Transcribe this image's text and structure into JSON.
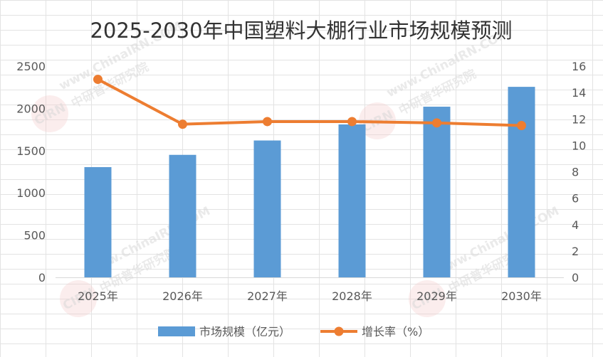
{
  "chart_data": {
    "type": "bar",
    "title": "2025-2030年中国塑料大棚行业市场规模预测",
    "categories": [
      "2025年",
      "2026年",
      "2027年",
      "2028年",
      "2029年",
      "2030年"
    ],
    "series": [
      {
        "name": "市场规模（亿元）",
        "type": "bar",
        "axis": "left",
        "color": "#5b9bd5",
        "values": [
          1305,
          1450,
          1620,
          1810,
          2020,
          2255
        ]
      },
      {
        "name": "增长率（%）",
        "type": "line",
        "axis": "right",
        "color": "#ed7d31",
        "values": [
          15.0,
          11.6,
          11.8,
          11.8,
          11.7,
          11.5
        ]
      }
    ],
    "y_left": {
      "min": 0,
      "max": 2500,
      "ticks": [
        0,
        500,
        1000,
        1500,
        2000,
        2500
      ]
    },
    "y_right": {
      "min": 0,
      "max": 16,
      "ticks": [
        0,
        2,
        4,
        6,
        8,
        10,
        12,
        14,
        16
      ]
    },
    "grid": true,
    "legend_position": "bottom"
  },
  "watermark": {
    "logo_text": "CIRN",
    "text": "中研普华研究院",
    "url": "www.ChinaIRN.COM"
  }
}
